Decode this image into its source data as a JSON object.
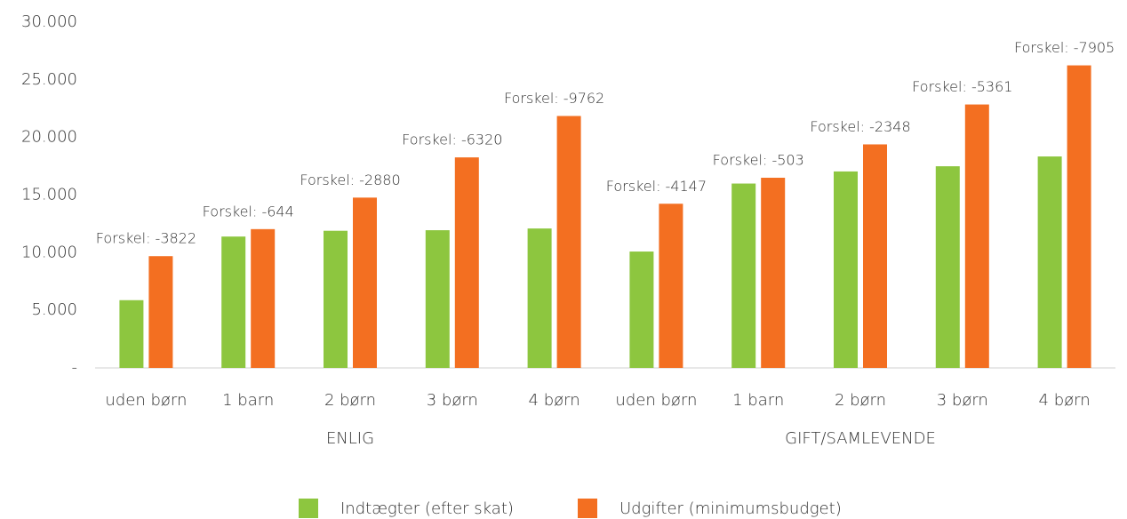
{
  "chart_data": {
    "type": "bar",
    "categories": [
      "uden børn",
      "1 barn",
      "2 børn",
      "3 børn",
      "4 børn",
      "uden børn",
      "1 barn",
      "2 børn",
      "3 børn",
      "4 børn"
    ],
    "groups": [
      "ENLIG",
      "GIFT/SAMLEVENDE"
    ],
    "series": [
      {
        "name": "Indtægter (efter skat)",
        "color": "#8dc63f",
        "values": [
          5878,
          11400,
          11900,
          11950,
          12100,
          10100,
          16000,
          17050,
          17500,
          18350
        ]
      },
      {
        "name": "Udgifter (minimumsbudget)",
        "color": "#f36f21",
        "values": [
          9700,
          12044,
          14780,
          18270,
          21862,
          14247,
          16503,
          19398,
          22861,
          26255
        ]
      }
    ],
    "annotations": [
      "Forskel: -3822",
      "Forskel: -644",
      "Forskel: -2880",
      "Forskel: -6320",
      "Forskel: -9762",
      "Forskel: -4147",
      "Forskel: -503",
      "Forskel: -2348",
      "Forskel: -5361",
      "Forskel: -7905"
    ],
    "ylim": [
      0,
      30000
    ],
    "yticks": [
      {
        "value": 0,
        "label": "-"
      },
      {
        "value": 5000,
        "label": "5.000"
      },
      {
        "value": 10000,
        "label": "10.000"
      },
      {
        "value": 15000,
        "label": "15.000"
      },
      {
        "value": 20000,
        "label": "20.000"
      },
      {
        "value": 25000,
        "label": "25.000"
      },
      {
        "value": 30000,
        "label": "30.000"
      }
    ],
    "grid": false,
    "legend": "bottom"
  }
}
